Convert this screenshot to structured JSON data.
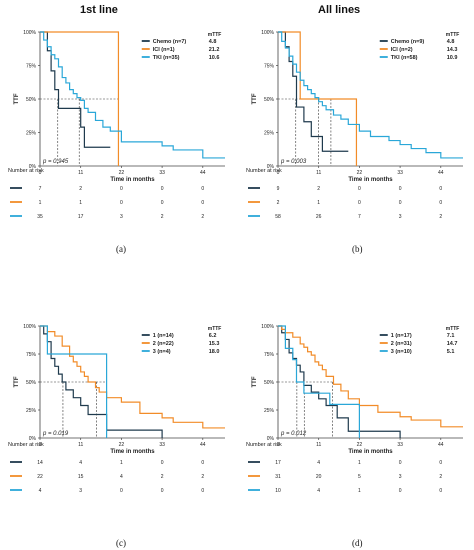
{
  "colors": {
    "chemo": "#1f3a4d",
    "ici": "#f28c28",
    "tki": "#2aa7d8",
    "ref": "#333333",
    "axis": "#444444",
    "text": "#222222"
  },
  "common": {
    "y_label": "TTF",
    "x_label": "Time in months",
    "risk_title": "Number at risk",
    "legend_header": "mTTF"
  },
  "chart_data": [
    {
      "panel_letter": "(a)",
      "title": "1st line",
      "type": "line",
      "subtype": "kaplan-meier",
      "xlim": [
        0,
        50
      ],
      "ylim": [
        0,
        100
      ],
      "x_ticks": [
        "0",
        "11",
        "22",
        "33",
        "44"
      ],
      "y_ticks": [
        "0%",
        "25%",
        "50%",
        "75%",
        "100%"
      ],
      "p_value": "p = 0.945",
      "median_lines": [
        4.8,
        10.6,
        21.2
      ],
      "risk_times": [
        0,
        11,
        22,
        33,
        44
      ],
      "series": [
        {
          "name": "Chemo (n=7)",
          "color_key": "chemo",
          "median": "4.8",
          "x": [
            0,
            2,
            3,
            4,
            5,
            7,
            11,
            12,
            19
          ],
          "y": [
            100,
            86,
            71,
            57,
            43,
            43,
            29,
            14,
            14
          ],
          "risk": [
            "7",
            "2",
            "0",
            "0",
            "0"
          ]
        },
        {
          "name": "ICI (n=1)",
          "color_key": "ici",
          "median": "21.2",
          "x": [
            0,
            21.2
          ],
          "y": [
            100,
            0
          ],
          "risk": [
            "1",
            "1",
            "0",
            "0",
            "0"
          ]
        },
        {
          "name": "TKI (n=35)",
          "color_key": "tki",
          "median": "10.6",
          "x": [
            0,
            1,
            2,
            3,
            4,
            5,
            6,
            7,
            8,
            9,
            10,
            11,
            12,
            13,
            15,
            17,
            19,
            22,
            33,
            36,
            44,
            50
          ],
          "y": [
            100,
            94,
            89,
            83,
            80,
            74,
            66,
            62,
            57,
            54,
            51,
            49,
            43,
            40,
            34,
            29,
            26,
            18,
            15,
            12,
            6,
            6
          ],
          "risk": [
            "35",
            "17",
            "3",
            "2",
            "2"
          ]
        }
      ]
    },
    {
      "panel_letter": "(b)",
      "title": "All lines",
      "type": "line",
      "subtype": "kaplan-meier",
      "xlim": [
        0,
        50
      ],
      "ylim": [
        0,
        100
      ],
      "x_ticks": [
        "0",
        "11",
        "22",
        "33",
        "44"
      ],
      "y_ticks": [
        "0%",
        "25%",
        "50%",
        "75%",
        "100%"
      ],
      "p_value": "p = 0.003",
      "median_lines": [
        4.8,
        10.9,
        14.3
      ],
      "risk_times": [
        0,
        11,
        22,
        33,
        44
      ],
      "series": [
        {
          "name": "Chemo (n=9)",
          "color_key": "chemo",
          "median": "4.8",
          "x": [
            0,
            2,
            3,
            4,
            5,
            7,
            9,
            12,
            16,
            19
          ],
          "y": [
            100,
            89,
            78,
            67,
            44,
            33,
            22,
            11,
            11,
            11
          ],
          "risk": [
            "9",
            "2",
            "0",
            "0",
            "0"
          ]
        },
        {
          "name": "ICI (n=2)",
          "color_key": "ici",
          "median": "14.3",
          "x": [
            0,
            6,
            21.2
          ],
          "y": [
            100,
            50,
            0
          ],
          "risk": [
            "2",
            "1",
            "0",
            "0",
            "0"
          ]
        },
        {
          "name": "TKI (n=58)",
          "color_key": "tki",
          "median": "10.9",
          "x": [
            0,
            1,
            2,
            3,
            4,
            5,
            6,
            7,
            8,
            9,
            10,
            11,
            12,
            13,
            15,
            17,
            19,
            22,
            25,
            30,
            33,
            36,
            40,
            44,
            50
          ],
          "y": [
            100,
            93,
            88,
            82,
            76,
            70,
            64,
            60,
            57,
            54,
            51,
            48,
            45,
            42,
            38,
            35,
            31,
            26,
            22,
            19,
            16,
            13,
            10,
            6,
            6
          ],
          "risk": [
            "58",
            "26",
            "7",
            "3",
            "2"
          ]
        }
      ]
    },
    {
      "panel_letter": "(c)",
      "title": "",
      "type": "line",
      "subtype": "kaplan-meier",
      "xlim": [
        0,
        50
      ],
      "ylim": [
        0,
        100
      ],
      "x_ticks": [
        "0",
        "11",
        "22",
        "33",
        "44"
      ],
      "y_ticks": [
        "0%",
        "25%",
        "50%",
        "75%",
        "100%"
      ],
      "p_value": "p = 0.019",
      "median_lines": [
        6.2,
        15.3,
        18.0
      ],
      "risk_times": [
        0,
        11,
        22,
        33,
        44
      ],
      "series": [
        {
          "name": "1 (n=14)",
          "color_key": "chemo",
          "median": "6.2",
          "x": [
            0,
            1,
            2,
            3,
            4,
            5,
            6,
            7,
            9,
            11,
            13,
            18,
            33
          ],
          "y": [
            100,
            93,
            86,
            71,
            64,
            57,
            50,
            43,
            36,
            29,
            21,
            7,
            0
          ],
          "risk": [
            "14",
            "4",
            "1",
            "0",
            "0"
          ]
        },
        {
          "name": "2 (n=22)",
          "color_key": "ici",
          "median": "15.3",
          "x": [
            0,
            2,
            4,
            6,
            8,
            9,
            10,
            11,
            12,
            13,
            15,
            16,
            18,
            22,
            27,
            33,
            36,
            44,
            50
          ],
          "y": [
            100,
            95,
            91,
            82,
            73,
            68,
            64,
            59,
            55,
            50,
            45,
            41,
            36,
            32,
            22,
            18,
            14,
            9,
            9
          ],
          "risk": [
            "22",
            "15",
            "4",
            "2",
            "2"
          ]
        },
        {
          "name": "3 (n=4)",
          "color_key": "tki",
          "median": "18.0",
          "x": [
            0,
            2,
            18
          ],
          "y": [
            100,
            75,
            0
          ],
          "risk": [
            "4",
            "3",
            "0",
            "0",
            "0"
          ]
        }
      ]
    },
    {
      "panel_letter": "(d)",
      "title": "",
      "type": "line",
      "subtype": "kaplan-meier",
      "xlim": [
        0,
        50
      ],
      "ylim": [
        0,
        100
      ],
      "x_ticks": [
        "0",
        "11",
        "22",
        "33",
        "44"
      ],
      "y_ticks": [
        "0%",
        "25%",
        "50%",
        "75%",
        "100%"
      ],
      "p_value": "p = 0.012",
      "median_lines": [
        5.1,
        7.1,
        14.7
      ],
      "risk_times": [
        0,
        11,
        22,
        33,
        44
      ],
      "series": [
        {
          "name": "1 (n=17)",
          "color_key": "chemo",
          "median": "7.1",
          "x": [
            0,
            1,
            2,
            3,
            4,
            5,
            6,
            7,
            9,
            11,
            13,
            16,
            19,
            33
          ],
          "y": [
            100,
            94,
            88,
            76,
            71,
            65,
            59,
            47,
            41,
            35,
            29,
            18,
            6,
            0
          ],
          "risk": [
            "17",
            "4",
            "1",
            "0",
            "0"
          ]
        },
        {
          "name": "2 (n=31)",
          "color_key": "ici",
          "median": "14.7",
          "x": [
            0,
            1,
            2,
            4,
            6,
            7,
            8,
            9,
            10,
            11,
            12,
            13,
            15,
            17,
            19,
            22,
            27,
            33,
            36,
            44,
            50
          ],
          "y": [
            100,
            97,
            94,
            90,
            84,
            81,
            77,
            74,
            68,
            65,
            61,
            55,
            48,
            42,
            35,
            29,
            23,
            19,
            16,
            10,
            10
          ],
          "risk": [
            "31",
            "20",
            "5",
            "3",
            "2"
          ]
        },
        {
          "name": "3 (n=10)",
          "color_key": "tki",
          "median": "5.1",
          "x": [
            0,
            2,
            4,
            5,
            7,
            10,
            14,
            22
          ],
          "y": [
            100,
            80,
            70,
            50,
            40,
            40,
            30,
            0
          ],
          "risk": [
            "10",
            "4",
            "1",
            "0",
            "0"
          ]
        }
      ]
    }
  ]
}
